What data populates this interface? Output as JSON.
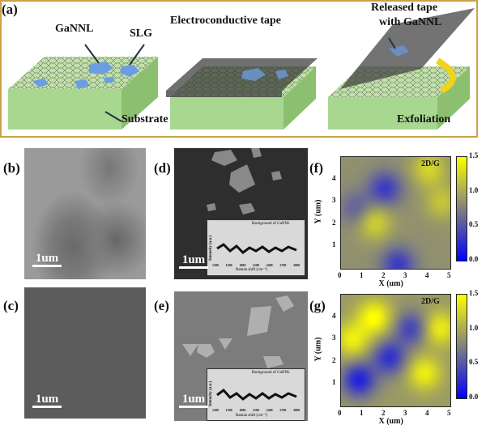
{
  "panels": {
    "a": {
      "label": "(a)",
      "texts": {
        "ganl": "GaNNL",
        "slg": "SLG",
        "substrate": "Substrate",
        "tape": "Electroconductive tape",
        "released": "Released tape",
        "with": "with GaNNL",
        "exfoliation": "Exfoliation"
      }
    },
    "b": {
      "label": "(b)",
      "scale": "1um"
    },
    "c": {
      "label": "(c)",
      "scale": "1um"
    },
    "d": {
      "label": "(d)",
      "scale": "1um",
      "inset": {
        "legend": "Background of GaNNL",
        "ylabel": "Intensity (a.u.)",
        "xlabel": "Raman shift (cm⁻¹)",
        "xticks": [
          "1200",
          "1500",
          "1800",
          "2100",
          "2400",
          "2700",
          "3000"
        ]
      }
    },
    "e": {
      "label": "(e)",
      "scale": "1um",
      "inset": {
        "legend": "Background of GaNNL",
        "ylabel": "Intensity (a.u.)",
        "xlabel": "Raman shift (cm⁻¹)",
        "xticks": [
          "1200",
          "1500",
          "1800",
          "2100",
          "2400",
          "2700",
          "3000"
        ]
      }
    },
    "f": {
      "label": "(f)",
      "title": "2D/G"
    },
    "g": {
      "label": "(g)",
      "title": "2D/G"
    }
  },
  "chart_data": [
    {
      "type": "heatmap",
      "title": "2D/G",
      "xlabel": "X (um)",
      "ylabel": "Y (um)",
      "xlim": [
        0,
        5
      ],
      "ylim": [
        0,
        5
      ],
      "xticks": [
        "0",
        "1",
        "2",
        "3",
        "4",
        "5"
      ],
      "yticks": [
        "1",
        "2",
        "3",
        "4"
      ],
      "colorbar": {
        "range": [
          0,
          1.5
        ],
        "ticks": [
          "0.0",
          "0.5",
          "1.0",
          "1.5"
        ],
        "colors": [
          "#0000ff",
          "#808080",
          "#ffff00"
        ]
      }
    },
    {
      "type": "heatmap",
      "title": "2D/G",
      "xlabel": "X (um)",
      "ylabel": "Y (um)",
      "xlim": [
        0,
        5
      ],
      "ylim": [
        0,
        5
      ],
      "xticks": [
        "0",
        "1",
        "2",
        "3",
        "4",
        "5"
      ],
      "yticks": [
        "1",
        "2",
        "3",
        "4"
      ],
      "colorbar": {
        "range": [
          0,
          1.5
        ],
        "ticks": [
          "0.0",
          "0.5",
          "1.0",
          "1.5"
        ],
        "colors": [
          "#0000ff",
          "#808080",
          "#ffff00"
        ]
      }
    }
  ]
}
